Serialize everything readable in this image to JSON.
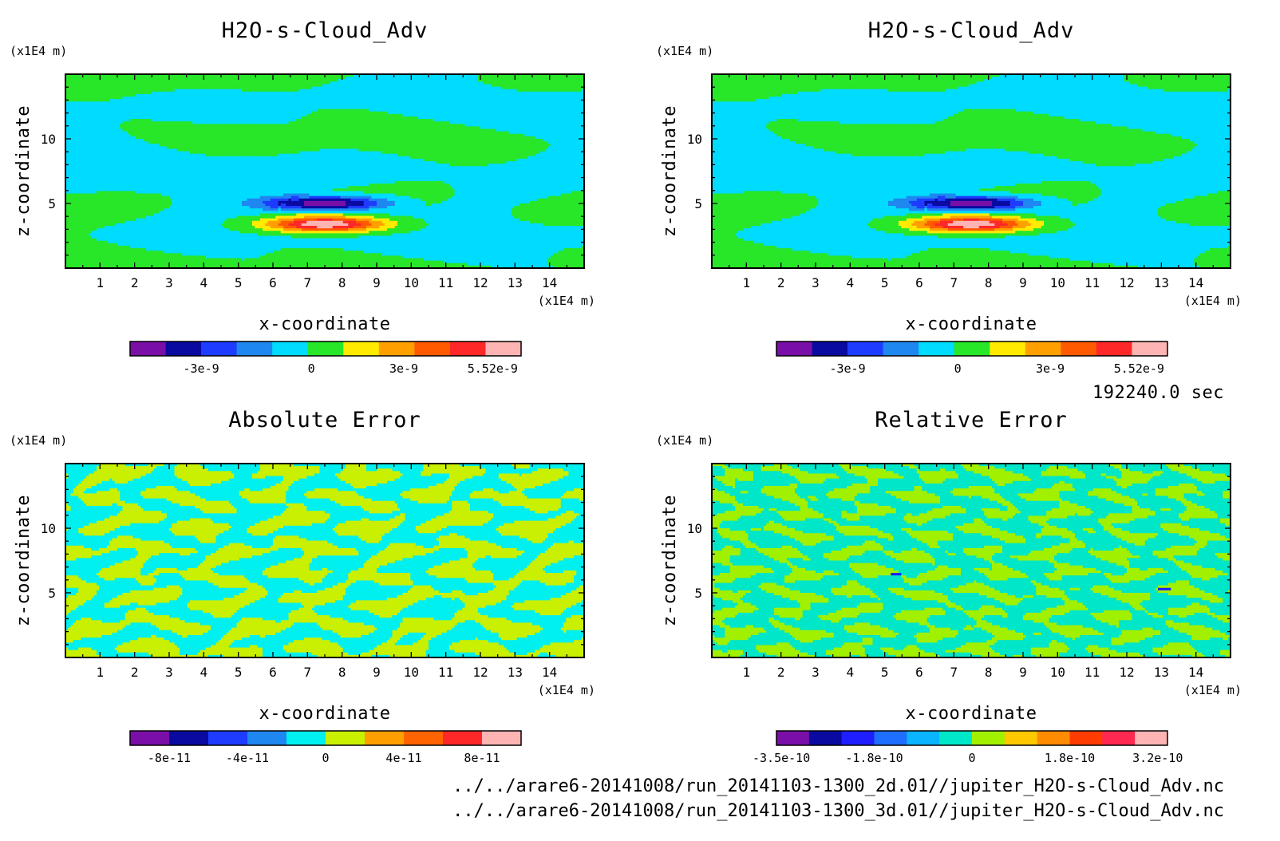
{
  "time_label": "192240.0 sec",
  "footer": {
    "line1": "../../arare6-20141008/run_20141103-1300_2d.01//jupiter_H2O-s-Cloud_Adv.nc",
    "line2": "../../arare6-20141008/run_20141103-1300_3d.01//jupiter_H2O-s-Cloud_Adv.nc"
  },
  "chart_data": [
    {
      "type": "heatmap",
      "title": "H2O-s-Cloud_Adv",
      "xlabel": "x-coordinate",
      "ylabel": "z-coordinate",
      "x_unit": "(x1E4 m)",
      "y_unit": "(x1E4 m)",
      "xlim": [
        0,
        15
      ],
      "ylim": [
        0,
        15
      ],
      "x_ticks": [
        1,
        2,
        3,
        4,
        5,
        6,
        7,
        8,
        9,
        10,
        11,
        12,
        13,
        14
      ],
      "y_ticks": [
        5,
        10
      ],
      "field": "cloud",
      "colorbar": {
        "colors": [
          "#7a0fa8",
          "#0a0aa0",
          "#1e3cff",
          "#1e87f0",
          "#00dcff",
          "#28e628",
          "#ffea00",
          "#ffa000",
          "#ff5a00",
          "#ff2828",
          "#ffb4b4"
        ],
        "tick_labels": [
          "-3e-9",
          "0",
          "3e-9",
          "5.52e-9"
        ]
      }
    },
    {
      "type": "heatmap",
      "title": "H2O-s-Cloud_Adv",
      "xlabel": "x-coordinate",
      "ylabel": "z-coordinate",
      "x_unit": "(x1E4 m)",
      "y_unit": "(x1E4 m)",
      "xlim": [
        0,
        15
      ],
      "ylim": [
        0,
        15
      ],
      "x_ticks": [
        1,
        2,
        3,
        4,
        5,
        6,
        7,
        8,
        9,
        10,
        11,
        12,
        13,
        14
      ],
      "y_ticks": [
        5,
        10
      ],
      "field": "cloud",
      "colorbar": {
        "colors": [
          "#7a0fa8",
          "#0a0aa0",
          "#1e3cff",
          "#1e87f0",
          "#00dcff",
          "#28e628",
          "#ffea00",
          "#ffa000",
          "#ff5a00",
          "#ff2828",
          "#ffb4b4"
        ],
        "tick_labels": [
          "-3e-9",
          "0",
          "3e-9",
          "5.52e-9"
        ]
      }
    },
    {
      "type": "heatmap",
      "title": "Absolute Error",
      "xlabel": "x-coordinate",
      "ylabel": "z-coordinate",
      "x_unit": "(x1E4 m)",
      "y_unit": "(x1E4 m)",
      "xlim": [
        0,
        15
      ],
      "ylim": [
        0,
        15
      ],
      "x_ticks": [
        1,
        2,
        3,
        4,
        5,
        6,
        7,
        8,
        9,
        10,
        11,
        12,
        13,
        14
      ],
      "y_ticks": [
        5,
        10
      ],
      "field": "abs",
      "colorbar": {
        "colors": [
          "#7a0fa8",
          "#0a0aa0",
          "#1e3cff",
          "#1e87f0",
          "#00f0f0",
          "#c8f000",
          "#ffa000",
          "#ff6400",
          "#ff2828",
          "#ffb4b4"
        ],
        "tick_labels": [
          "-8e-11",
          "-4e-11",
          "0",
          "4e-11",
          "8e-11"
        ]
      }
    },
    {
      "type": "heatmap",
      "title": "Relative Error",
      "xlabel": "x-coordinate",
      "ylabel": "z-coordinate",
      "x_unit": "(x1E4 m)",
      "y_unit": "(x1E4 m)",
      "xlim": [
        0,
        15
      ],
      "ylim": [
        0,
        15
      ],
      "x_ticks": [
        1,
        2,
        3,
        4,
        5,
        6,
        7,
        8,
        9,
        10,
        11,
        12,
        13,
        14
      ],
      "y_ticks": [
        5,
        10
      ],
      "field": "rel",
      "colorbar": {
        "colors": [
          "#7a0fa8",
          "#0a0aa0",
          "#1e1eff",
          "#1e6eff",
          "#0ab4ff",
          "#00e6c8",
          "#a0f000",
          "#ffc800",
          "#ff8c00",
          "#ff3c00",
          "#ff2850",
          "#ffb4b4"
        ],
        "tick_labels": [
          "-3.5e-10",
          "-1.8e-10",
          "0",
          "1.8e-10",
          "3.2e-10"
        ]
      }
    }
  ]
}
